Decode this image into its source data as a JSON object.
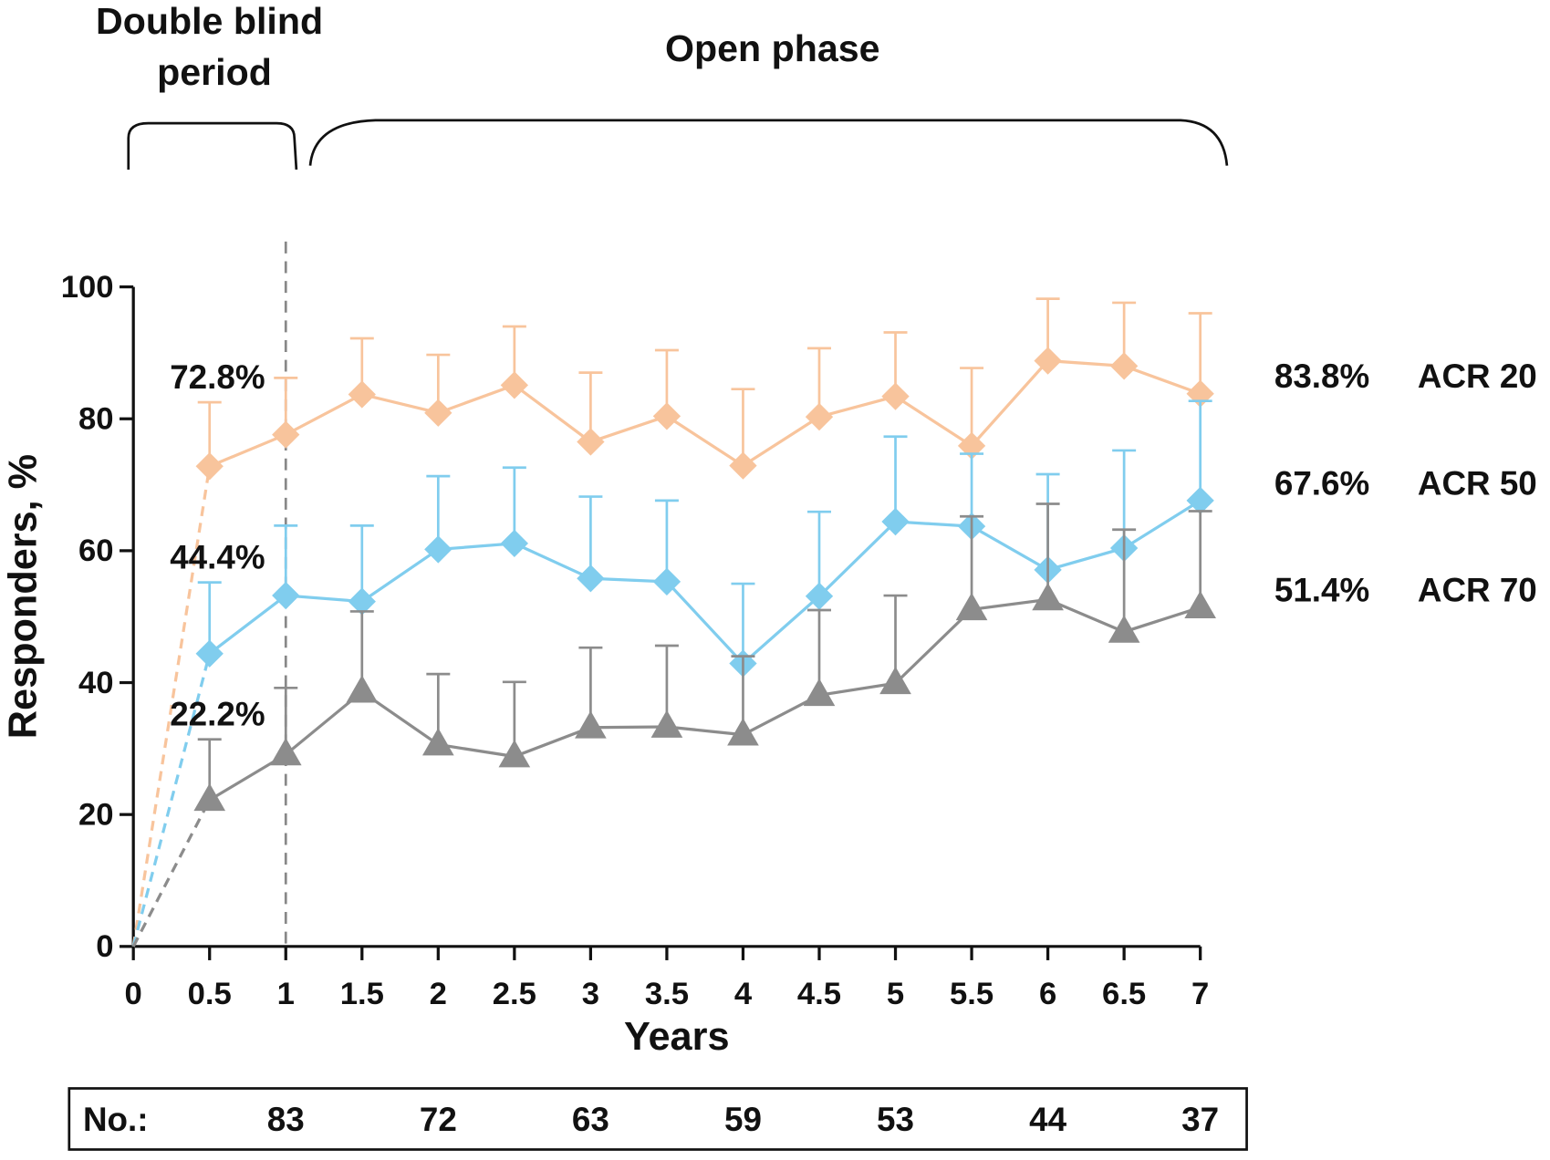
{
  "chart_data": {
    "type": "line",
    "annotations": {
      "double_blind": "Double blind period",
      "open_phase": "Open phase"
    },
    "phase_split": 1,
    "x_label": "Years",
    "y_label": "Responders, %",
    "x": [
      0,
      0.5,
      1,
      1.5,
      2,
      2.5,
      3,
      3.5,
      4,
      4.5,
      5,
      5.5,
      6,
      6.5,
      7
    ],
    "xlim": [
      0,
      7
    ],
    "xticks": [
      0,
      0.5,
      1,
      1.5,
      2,
      2.5,
      3,
      3.5,
      4,
      4.5,
      5,
      5.5,
      6,
      6.5,
      7
    ],
    "ylim": [
      0,
      100
    ],
    "yticks": [
      0,
      20,
      40,
      60,
      80,
      100
    ],
    "series": [
      {
        "name": "ACR 20",
        "color": "#f8c49c",
        "marker": "diamond",
        "values": [
          0,
          72.8,
          77.6,
          83.7,
          80.9,
          85.1,
          76.5,
          80.4,
          72.9,
          80.3,
          83.4,
          75.9,
          88.8,
          88.0,
          83.8
        ],
        "errors": [
          null,
          9.7,
          8.6,
          8.5,
          8.8,
          8.9,
          10.5,
          10.0,
          11.6,
          10.4,
          9.7,
          11.8,
          9.4,
          9.6,
          12.2
        ],
        "value_labels": [
          null,
          "72.8%",
          null,
          null,
          null,
          null,
          null,
          null,
          null,
          null,
          null,
          null,
          null,
          null,
          "83.8%"
        ]
      },
      {
        "name": "ACR 50",
        "color": "#80cdee",
        "marker": "diamond",
        "values": [
          0,
          44.4,
          53.2,
          52.3,
          60.2,
          61.1,
          55.8,
          55.3,
          42.9,
          53.1,
          64.4,
          63.7,
          57.1,
          60.4,
          67.6
        ],
        "errors": [
          null,
          10.8,
          10.6,
          11.5,
          11.1,
          11.5,
          12.4,
          12.3,
          12.1,
          12.8,
          12.9,
          11.0,
          14.5,
          14.8,
          15.1
        ],
        "value_labels": [
          null,
          "44.4%",
          null,
          null,
          null,
          null,
          null,
          null,
          null,
          null,
          null,
          null,
          null,
          null,
          "67.6%"
        ]
      },
      {
        "name": "ACR 70",
        "color": "#8c8c8c",
        "marker": "triangle",
        "values": [
          0,
          22.2,
          29.1,
          38.6,
          30.6,
          28.8,
          33.2,
          33.3,
          32.1,
          38.1,
          39.9,
          51.1,
          52.6,
          47.7,
          51.4
        ],
        "errors": [
          null,
          9.2,
          10.1,
          12.2,
          10.7,
          11.3,
          12.1,
          12.3,
          11.9,
          12.9,
          13.3,
          14.1,
          14.5,
          15.5,
          14.6
        ],
        "value_labels": [
          null,
          "22.2%",
          null,
          null,
          null,
          null,
          null,
          null,
          null,
          null,
          null,
          null,
          null,
          null,
          "51.4%"
        ]
      }
    ],
    "numbers": {
      "label": "No.:",
      "x": [
        1,
        2,
        3,
        4,
        5,
        6,
        7
      ],
      "values": [
        83,
        72,
        63,
        59,
        53,
        44,
        37
      ]
    }
  }
}
